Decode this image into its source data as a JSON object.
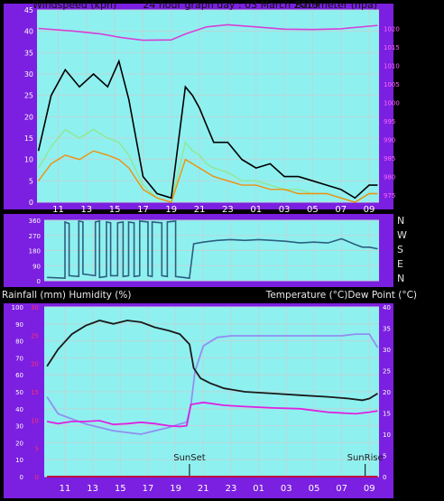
{
  "header": {
    "left": "Windspeed (kph)",
    "center": "24 hour graph day : 03 March 2019",
    "right": "Barometer (hpa)"
  },
  "middle": {
    "compass": [
      "N",
      "W",
      "S",
      "E",
      "N"
    ]
  },
  "lower_header": {
    "left": "Rainfall (mm)  Humidity (%)",
    "right": "Temperature (°C)Dew Point (°C)"
  },
  "markers": {
    "sunset": "SunSet",
    "sunrise": "SunRise"
  },
  "colors": {
    "frame": "#7b1fe0",
    "plot_bg": "#8ff0f0",
    "grid": "#b8d8d8",
    "wind_gust": "#000000",
    "wind_avg": "#f0900c",
    "wind_light": "#90e890",
    "barometer": "#d640d6",
    "direction": "#2b5f7f",
    "humidity": "#9090f0",
    "temperature": "#1a1a1a",
    "dewpoint": "#e020e0",
    "rainfall": "#c01040",
    "marker": "#000000"
  },
  "chart_data": [
    {
      "type": "line",
      "x_ticks": [
        "11",
        "13",
        "15",
        "17",
        "19",
        "21",
        "23",
        "01",
        "03",
        "05",
        "07",
        "09"
      ],
      "y_left": {
        "ticks": [
          "0",
          "5",
          "10",
          "15",
          "20",
          "25",
          "30",
          "35",
          "40",
          "45"
        ],
        "ylim": [
          0,
          45
        ]
      },
      "y_right": {
        "ticks": [
          "975",
          "980",
          "985",
          "990",
          "995",
          "1000",
          "1005",
          "1010",
          "1015",
          "1020"
        ],
        "ylim": [
          973,
          1025
        ]
      },
      "series": [
        {
          "axis": "left",
          "x": [
            9.6,
            10.5,
            11.5,
            12.5,
            13.5,
            14.5,
            15.3,
            16.0,
            17.0,
            18.0,
            19.0,
            20.0,
            20.5,
            21.0,
            21.5,
            22.0,
            23.0,
            24.0,
            25.0,
            26.0,
            27.0,
            28.0,
            29.0,
            30.0,
            31.0,
            32.0,
            33.0,
            33.6
          ],
          "y": [
            12,
            25,
            31,
            27,
            30,
            27,
            33,
            24,
            6,
            2,
            1,
            27,
            25,
            22,
            18,
            14,
            14,
            10,
            8,
            9,
            6,
            6,
            5,
            4,
            3,
            1,
            4,
            4
          ]
        },
        {
          "axis": "left",
          "x": [
            9.6,
            10.5,
            11.5,
            12.5,
            13.5,
            14.5,
            15.3,
            16.0,
            17.0,
            18.0,
            19.0,
            20.0,
            20.5,
            21.0,
            21.5,
            22.0,
            23.0,
            24.0,
            25.0,
            26.0,
            27.0,
            28.0,
            29.0,
            30.0,
            31.0,
            32.0,
            33.0,
            33.6
          ],
          "y": [
            5,
            9,
            11,
            10,
            12,
            11,
            10,
            8,
            3,
            1,
            0,
            10,
            9,
            8,
            7,
            6,
            5,
            4,
            4,
            3,
            3,
            2,
            2,
            2,
            1,
            0,
            2,
            2
          ]
        },
        {
          "axis": "left",
          "x": [
            9.6,
            10.5,
            11.5,
            12.5,
            13.5,
            14.5,
            15.3,
            16.0,
            17.0,
            18.0,
            19.0,
            20.0,
            20.5,
            21.0,
            21.5,
            22.0,
            23.0,
            24.0,
            25.0,
            26.0,
            27.0,
            28.0,
            29.0,
            30.0,
            31.0,
            32.0,
            33.0,
            33.6
          ],
          "y": [
            8,
            13,
            17,
            15,
            17,
            15,
            14,
            11,
            4,
            1,
            0,
            14,
            12,
            11,
            9,
            8,
            7,
            5,
            5,
            4,
            3,
            3,
            2,
            2,
            1,
            0,
            2,
            2
          ]
        },
        {
          "axis": "right",
          "x": [
            9.6,
            12.0,
            14.0,
            15.5,
            17.0,
            19.0,
            20.0,
            21.5,
            23.0,
            25.0,
            27.0,
            29.0,
            31.0,
            33.0,
            33.6
          ],
          "y": [
            1020.0,
            1019.3,
            1018.5,
            1017.5,
            1016.8,
            1016.9,
            1018.5,
            1020.4,
            1021.0,
            1020.4,
            1019.8,
            1019.7,
            1019.9,
            1020.6,
            1020.8
          ]
        }
      ]
    },
    {
      "type": "line",
      "y_ticks": [
        "0",
        "90",
        "180",
        "270",
        "360"
      ],
      "ylim": [
        0,
        360
      ],
      "series": [
        {
          "x": [
            9.7,
            11.0,
            11.0,
            11.3,
            11.3,
            12.0,
            12.0,
            12.3,
            12.3,
            13.2,
            13.2,
            13.5,
            13.5,
            14.0,
            14.0,
            14.3,
            14.3,
            14.8,
            14.8,
            15.2,
            15.2,
            15.6,
            15.6,
            16.0,
            16.0,
            16.4,
            16.4,
            17.0,
            17.0,
            17.3,
            17.3,
            18.0,
            18.0,
            18.4,
            18.4,
            19.0,
            19.0,
            20.0,
            20.0,
            20.3,
            21.0,
            22.0,
            23.0,
            24.0,
            25.0,
            26.0,
            27.0,
            28.0,
            29.0,
            30.0,
            31.0,
            32.0,
            32.5,
            33.0,
            33.6
          ],
          "y": [
            20,
            15,
            350,
            340,
            30,
            25,
            355,
            350,
            40,
            30,
            350,
            355,
            20,
            25,
            350,
            345,
            30,
            30,
            345,
            350,
            25,
            30,
            350,
            345,
            25,
            30,
            355,
            350,
            30,
            25,
            350,
            345,
            30,
            25,
            350,
            355,
            25,
            15,
            20,
            220,
            230,
            240,
            245,
            240,
            245,
            240,
            235,
            225,
            230,
            225,
            250,
            215,
            200,
            200,
            190
          ]
        }
      ]
    },
    {
      "type": "line",
      "y_left": {
        "ticks": [
          "0",
          "10",
          "20",
          "30",
          "40",
          "50",
          "60",
          "70",
          "80",
          "90",
          "100"
        ],
        "ylim": [
          0,
          100
        ]
      },
      "y_left_inner": {
        "ticks": [
          "0",
          "5",
          "10",
          "15",
          "20",
          "25",
          "30"
        ],
        "ylim": [
          0,
          30
        ]
      },
      "y_right": {
        "ticks": [
          "0",
          "5",
          "10",
          "15",
          "20",
          "25",
          "30",
          "35",
          "40"
        ],
        "ylim": [
          0,
          40
        ]
      },
      "series": [
        {
          "axis": "left",
          "x": [
            9.7,
            10.5,
            11.5,
            12.5,
            13.5,
            14.5,
            15.5,
            16.5,
            17.5,
            18.5,
            19.3,
            20.0,
            20.3,
            20.8,
            21.5,
            22.5,
            24.0,
            26.0,
            28.0,
            30.0,
            31.5,
            32.5,
            33.0,
            33.6
          ],
          "y": [
            65,
            75,
            84,
            89,
            92,
            90,
            92,
            91,
            88,
            86,
            84,
            78,
            64,
            58,
            55,
            52,
            50,
            49,
            48,
            47,
            46,
            45,
            46,
            49
          ]
        },
        {
          "axis": "left",
          "x": [
            9.7,
            10.5,
            11.5,
            12.5,
            13.5,
            14.5,
            15.5,
            16.5,
            17.5,
            18.5,
            19.3,
            19.8,
            20.1,
            20.4,
            21.0,
            22.0,
            23.0,
            25.0,
            27.0,
            29.0,
            31.0,
            32.0,
            33.0,
            33.6
          ],
          "y": [
            47,
            37,
            34,
            31,
            29,
            27,
            26,
            25,
            27,
            29,
            31,
            32,
            42,
            62,
            77,
            82,
            83,
            83,
            83,
            83,
            83,
            84,
            84,
            76
          ]
        },
        {
          "axis": "right",
          "x": [
            9.7,
            10.5,
            11.5,
            12.5,
            13.5,
            14.5,
            15.5,
            16.5,
            17.5,
            18.5,
            19.3,
            19.8,
            20.1,
            21.0,
            22.5,
            24.0,
            26.0,
            28.0,
            30.0,
            32.0,
            33.0,
            33.6
          ],
          "y": [
            13,
            12.5,
            13,
            13,
            13.2,
            12.3,
            12.5,
            12.8,
            12.5,
            12,
            11.8,
            12,
            17,
            17.5,
            16.8,
            16.5,
            16.2,
            16,
            15.2,
            14.8,
            15.2,
            15.5
          ]
        },
        {
          "axis": "left",
          "x": [
            9.7,
            33.6
          ],
          "y": [
            0,
            0
          ]
        }
      ],
      "markers": [
        {
          "label": "SunSet",
          "x": 20.0
        },
        {
          "label": "SunRise",
          "x": 32.7
        }
      ]
    }
  ]
}
